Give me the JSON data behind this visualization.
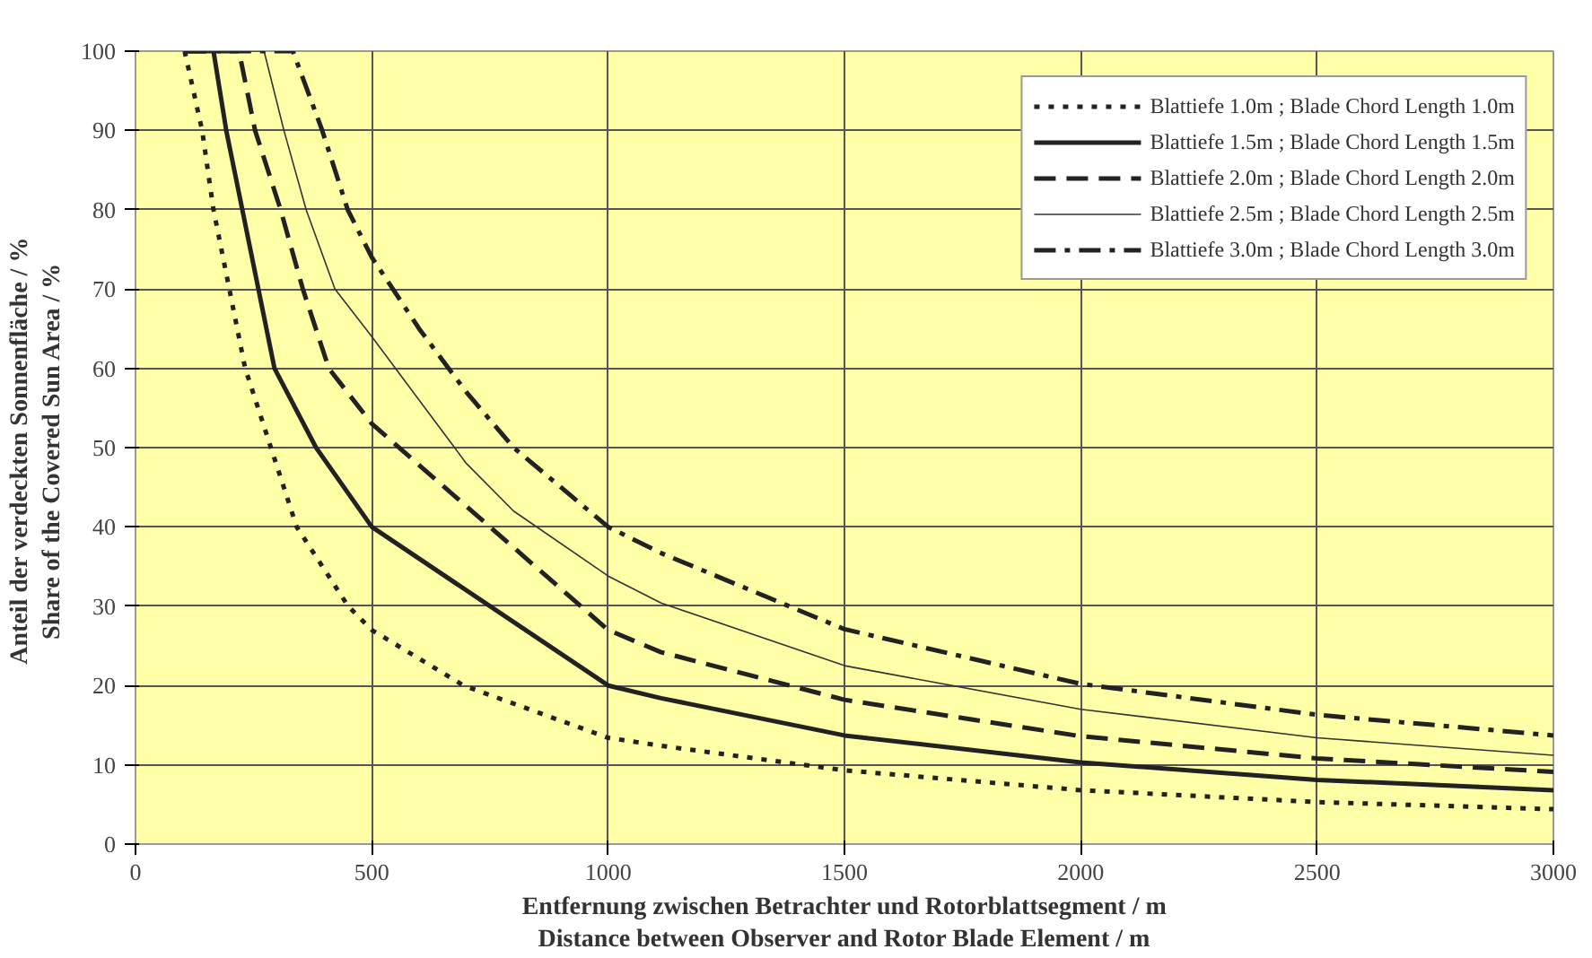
{
  "chart_data": {
    "type": "line",
    "xlabel": "Entfernung zwischen Betrachter und Rotorblattsegment / m\nDistance between Observer and Rotor Blade Element / m",
    "ylabel": "Anteil der verdeckten Sonnenfläche /  %\nShare of the Covered Sun Area /  %",
    "xlim": [
      0,
      3000
    ],
    "ylim": [
      0,
      100
    ],
    "xticks": [
      0,
      500,
      1000,
      1500,
      2000,
      2500,
      3000
    ],
    "yticks": [
      0,
      10,
      20,
      30,
      40,
      50,
      60,
      70,
      80,
      90,
      100
    ],
    "grid": true,
    "legend": "top right",
    "marker": "none",
    "series": [
      {
        "name": "Blattiefe 1.0m ; Blade Chord Length 1.0m",
        "color": "#222222",
        "line_style": "dotted",
        "x": [
          104,
          141,
          165,
          232,
          341,
          450,
          500,
          694,
          1000,
          1112,
          1500,
          2000,
          2500,
          3000
        ],
        "values": [
          100,
          90,
          80,
          60,
          40,
          30,
          27,
          20,
          13.4,
          12.4,
          9.3,
          6.8,
          5.3,
          4.4
        ]
      },
      {
        "name": "Blattiefe 1.5m ; Blade Chord Length 1.5m",
        "color": "#222222",
        "line_style": "solid",
        "x": [
          104,
          165,
          192,
          226,
          294,
          382,
          500,
          1000,
          1112,
          1500,
          2000,
          2500,
          3000
        ],
        "values": [
          100,
          100,
          90,
          80,
          60,
          50,
          40,
          20,
          18.4,
          13.7,
          10.3,
          8.1,
          6.8
        ]
      },
      {
        "name": "Blattiefe 2.0m ; Blade Chord Length 2.0m",
        "color": "#222222",
        "line_style": "dashed",
        "x": [
          104,
          219,
          253,
          307,
          354,
          409,
          500,
          1000,
          1112,
          1500,
          2000,
          2500,
          3000
        ],
        "values": [
          100,
          100,
          90,
          80,
          70,
          60,
          53,
          27,
          24.2,
          18.2,
          13.6,
          10.8,
          9.1
        ]
      },
      {
        "name": "Blattiefe 2.5m ; Blade Chord Length 2.5m",
        "color": "#333333",
        "line_style": "solid",
        "x": [
          104,
          272,
          314,
          361,
          422,
          500,
          600,
          700,
          800,
          1000,
          1112,
          1500,
          2000,
          2500,
          3000
        ],
        "values": [
          100,
          100,
          90,
          80,
          70,
          64,
          56,
          48,
          42,
          33.8,
          30.4,
          22.5,
          17,
          13.4,
          11.2
        ]
      },
      {
        "name": "Blattiefe 3.0m ; Blade Chord Length 3.0m",
        "color": "#222222",
        "line_style": "dashdot",
        "x": [
          104,
          333,
          395,
          449,
          500,
          600,
          700,
          800,
          1000,
          1112,
          1500,
          2000,
          2500,
          3000
        ],
        "values": [
          100,
          100,
          90,
          80,
          74,
          65,
          57,
          50,
          40,
          36.7,
          27.1,
          20.2,
          16.3,
          13.7
        ]
      }
    ]
  }
}
